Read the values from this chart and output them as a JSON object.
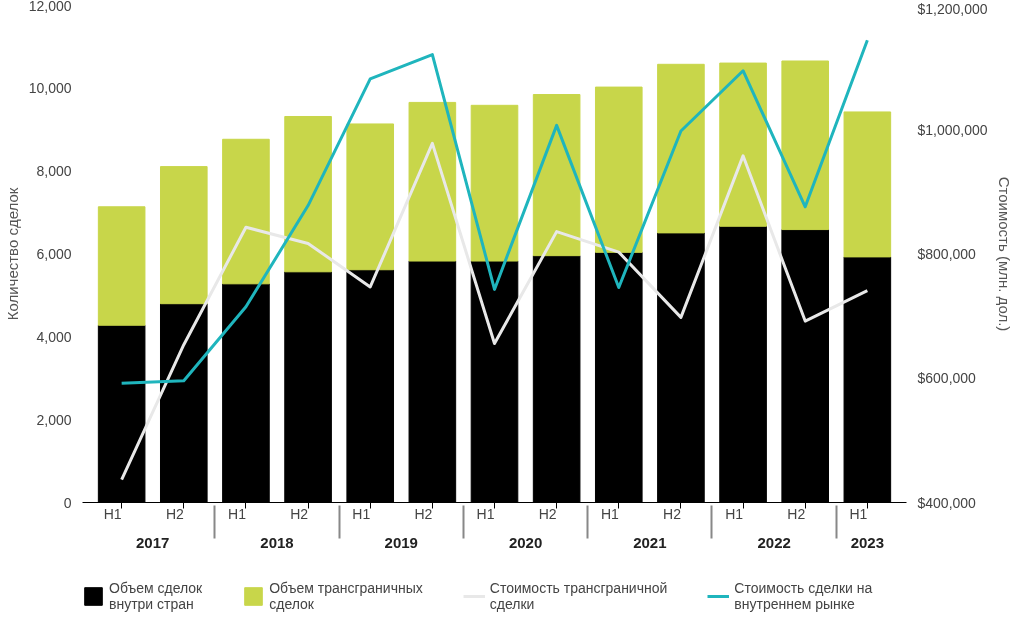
{
  "chart_data": {
    "type": "bar",
    "stacked": true,
    "categories": [
      [
        "2017",
        "H1"
      ],
      [
        null,
        "H2"
      ],
      [
        "2018",
        "H1"
      ],
      [
        null,
        "H2"
      ],
      [
        "2019",
        "H1"
      ],
      [
        null,
        "H2"
      ],
      [
        "2020",
        "H1"
      ],
      [
        null,
        "H2"
      ],
      [
        "2021",
        "H1"
      ],
      [
        null,
        "H2"
      ],
      [
        "2022",
        "H1"
      ],
      [
        null,
        "H2"
      ],
      [
        "2023",
        "H1"
      ]
    ],
    "ylabel": "Количество сделок",
    "y2label": "Стоимость (млн. дол.)",
    "ylim": [
      0,
      12000
    ],
    "yticks": [
      0,
      {
        "value": 2000,
        "label": "2,000"
      },
      {
        "value": 4000,
        "label": "4,000"
      },
      {
        "value": 6000,
        "label": "6,000"
      },
      {
        "value": 8000,
        "label": "8,000"
      },
      {
        "value": 10000,
        "label": "10,000"
      },
      {
        "value": 12000,
        "label": "12,000"
      }
    ],
    "y2lim": [
      400000,
      1200000
    ],
    "y2ticks": [
      {
        "value": 400000,
        "label": "$400,000"
      },
      {
        "value": 600000,
        "label": "$600,000"
      },
      {
        "value": 800000,
        "label": "$800,000"
      },
      {
        "value": 1000000,
        "label": "$1,000,000"
      },
      {
        "value": 1200000,
        "label": "$1,200,000"
      }
    ],
    "grid": false,
    "legend": "bottom",
    "series": [
      {
        "name": "Объем сделок внутри стран",
        "color": "#000000",
        "values": [
          4280,
          4800,
          5280,
          5570,
          5620,
          5830,
          5830,
          5960,
          6040,
          6510,
          6670,
          6590,
          5930
        ]
      },
      {
        "name": "Объем трансграничных сделок",
        "color": "#c8d64a",
        "values": [
          2860,
          3310,
          3490,
          3750,
          3520,
          3830,
          3760,
          3890,
          3990,
          4070,
          3940,
          4070,
          3500
        ]
      },
      {
        "name": "Стоимость трансграничной сделки",
        "type": "line",
        "axis": "y2",
        "color": "#e8e8e8",
        "values": [
          437000,
          654000,
          843000,
          817000,
          747000,
          978000,
          656000,
          836000,
          803000,
          698000,
          958000,
          692000,
          741000
        ]
      },
      {
        "name": "Стоимость сделки на внутреннем рынке",
        "type": "line",
        "axis": "y2",
        "color": "#1fb5bd",
        "values": [
          592000,
          596000,
          715000,
          878000,
          1082000,
          1121000,
          743000,
          1007000,
          746000,
          998000,
          1095000,
          876000,
          1144000
        ]
      }
    ]
  }
}
